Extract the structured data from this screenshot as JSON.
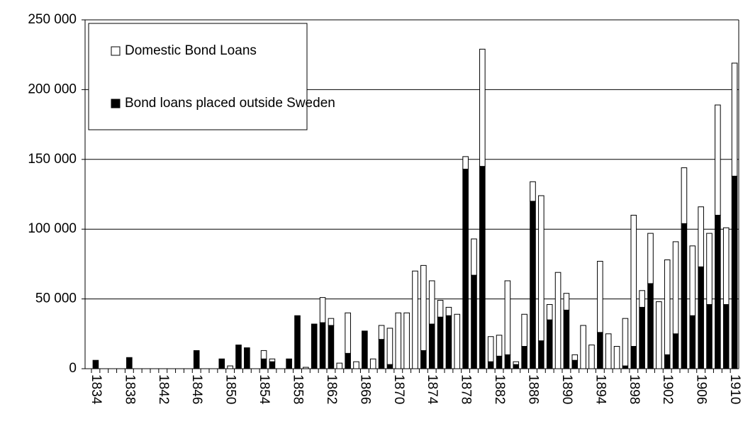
{
  "chart_data": {
    "type": "stacked-bar",
    "categories": [
      "1834",
      null,
      null,
      null,
      "1838",
      null,
      null,
      null,
      "1842",
      null,
      null,
      null,
      "1846",
      null,
      null,
      null,
      "1850",
      null,
      null,
      null,
      "1854",
      null,
      null,
      null,
      "1858",
      null,
      null,
      null,
      "1862",
      null,
      null,
      null,
      "1866",
      null,
      null,
      null,
      "1870",
      null,
      null,
      null,
      "1874",
      null,
      null,
      null,
      "1878",
      null,
      null,
      null,
      "1882",
      null,
      null,
      null,
      "1886",
      null,
      null,
      null,
      "1890",
      null,
      null,
      null,
      "1894",
      null,
      null,
      null,
      "1898",
      null,
      null,
      null,
      "1902",
      null,
      null,
      null,
      "1906",
      null,
      null,
      null,
      "1910"
    ],
    "series": [
      {
        "name": "Bond loans placed outside Sweden",
        "color": "#000000",
        "values": [
          6000,
          0,
          0,
          0,
          8000,
          0,
          0,
          0,
          0,
          0,
          0,
          0,
          13000,
          0,
          0,
          7000,
          0,
          17000,
          15000,
          0,
          7000,
          5000,
          0,
          7000,
          38000,
          0,
          32000,
          33000,
          31000,
          0,
          11000,
          0,
          27000,
          0,
          21000,
          3000,
          0,
          0,
          0,
          13000,
          32000,
          37000,
          38000,
          0,
          143000,
          67000,
          145000,
          5000,
          9000,
          10000,
          3000,
          16000,
          120000,
          20000,
          35000,
          0,
          42000,
          6000,
          0,
          0,
          26000,
          0,
          0,
          2000,
          16000,
          44000,
          61000,
          0,
          10000,
          25000,
          104000,
          38000,
          73000,
          46000,
          110000,
          46000,
          138000
        ]
      },
      {
        "name": "Domestic Bond Loans",
        "color": "#ffffff",
        "values": [
          0,
          0,
          0,
          0,
          0,
          0,
          0,
          0,
          0,
          0,
          0,
          0,
          0,
          0,
          0,
          0,
          2000,
          0,
          0,
          0,
          6000,
          2000,
          0,
          0,
          0,
          1000,
          0,
          18000,
          5000,
          4000,
          29000,
          5000,
          0,
          7000,
          10000,
          26000,
          40000,
          40000,
          70000,
          61000,
          31000,
          12000,
          6000,
          39000,
          9000,
          26000,
          84000,
          18000,
          15000,
          53000,
          2000,
          23000,
          14000,
          104000,
          11000,
          69000,
          12000,
          4000,
          31000,
          17000,
          51000,
          25000,
          16000,
          34000,
          94000,
          12000,
          36000,
          48000,
          68000,
          66000,
          40000,
          50000,
          43000,
          51000,
          79000,
          55000,
          81000
        ]
      }
    ],
    "ylim": [
      0,
      250000
    ],
    "yticks": [
      0,
      {
        "value": 50000,
        "label": "50 000"
      },
      {
        "value": 100000,
        "label": "100 000"
      },
      {
        "value": 150000,
        "label": "150 000"
      },
      {
        "value": 200000,
        "label": "200 000"
      },
      {
        "value": 250000,
        "label": "250 000"
      }
    ],
    "grid": true
  }
}
